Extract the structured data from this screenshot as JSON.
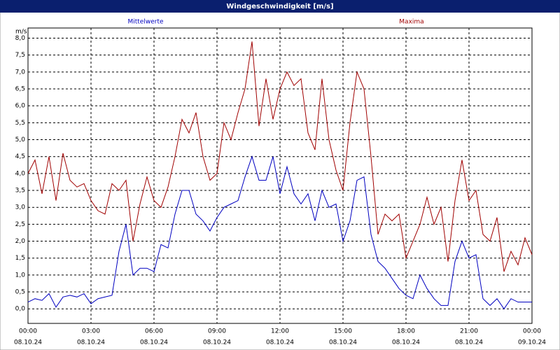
{
  "window_title": "Windgeschwindigkeit [m/s]",
  "chart_data": {
    "type": "line",
    "y_label": "m/s",
    "x": [
      0,
      20,
      40,
      60,
      80,
      100,
      120,
      140,
      160,
      180,
      200,
      220,
      240,
      260,
      280,
      300,
      320,
      340,
      360,
      380,
      400,
      420,
      440,
      460,
      480,
      500,
      520,
      540,
      560,
      580,
      600,
      620,
      640,
      660,
      680,
      700,
      720,
      740,
      760,
      780,
      800,
      820,
      840,
      860,
      880,
      900,
      920,
      940,
      960,
      980,
      1000,
      1020,
      1040,
      1060,
      1080,
      1100,
      1120,
      1140,
      1160,
      1180,
      1200,
      1220,
      1240,
      1260,
      1280,
      1300,
      1320,
      1340,
      1360,
      1380,
      1400,
      1420,
      1440
    ],
    "series": [
      {
        "name": "Mittelwerte",
        "color": "#0000c0",
        "values": [
          0.2,
          0.3,
          0.25,
          0.45,
          0.05,
          0.35,
          0.4,
          0.35,
          0.45,
          0.15,
          0.3,
          0.35,
          0.4,
          1.7,
          2.5,
          1.0,
          1.2,
          1.2,
          1.1,
          1.9,
          1.8,
          2.8,
          3.5,
          3.5,
          2.8,
          2.6,
          2.3,
          2.7,
          3.0,
          3.1,
          3.2,
          3.9,
          4.5,
          3.8,
          3.8,
          4.5,
          3.4,
          4.2,
          3.4,
          3.1,
          3.4,
          2.6,
          3.5,
          3.0,
          3.1,
          2.0,
          2.6,
          3.8,
          3.9,
          2.2,
          1.4,
          1.2,
          0.9,
          0.6,
          0.4,
          0.3,
          1.0,
          0.6,
          0.3,
          0.1,
          0.1,
          1.4,
          2.0,
          1.5,
          1.6,
          0.3,
          0.1,
          0.3,
          0.0,
          0.3,
          0.2,
          0.2,
          0.2
        ]
      },
      {
        "name": "Maxima",
        "color": "#a00000",
        "values": [
          4.0,
          4.4,
          3.4,
          4.5,
          3.2,
          4.6,
          3.8,
          3.6,
          3.7,
          3.2,
          2.9,
          2.8,
          3.7,
          3.5,
          3.8,
          2.0,
          3.1,
          3.9,
          3.2,
          3.0,
          3.6,
          4.5,
          5.6,
          5.2,
          5.8,
          4.5,
          3.8,
          4.0,
          5.5,
          5.0,
          5.8,
          6.5,
          7.9,
          5.4,
          6.8,
          5.6,
          6.5,
          7.0,
          6.6,
          6.8,
          5.2,
          4.7,
          6.8,
          5.0,
          4.1,
          3.5,
          5.5,
          7.0,
          6.5,
          4.5,
          2.2,
          2.8,
          2.6,
          2.8,
          1.5,
          2.0,
          2.5,
          3.3,
          2.5,
          3.0,
          1.4,
          3.2,
          4.4,
          3.2,
          3.5,
          2.2,
          2.0,
          2.7,
          1.1,
          1.7,
          1.3,
          2.1,
          1.6
        ]
      }
    ],
    "xlim": [
      0,
      1440
    ],
    "xticks": [
      {
        "value": 0,
        "label": "00:00"
      },
      {
        "value": 180,
        "label": "03:00"
      },
      {
        "value": 360,
        "label": "06:00"
      },
      {
        "value": 540,
        "label": "09:00"
      },
      {
        "value": 720,
        "label": "12:00"
      },
      {
        "value": 900,
        "label": "15:00"
      },
      {
        "value": 1080,
        "label": "18:00"
      },
      {
        "value": 1260,
        "label": "21:00"
      },
      {
        "value": 1440,
        "label": "00:00"
      }
    ],
    "xtick_dates": [
      "08.10.24",
      "08.10.24",
      "08.10.24",
      "08.10.24",
      "08.10.24",
      "08.10.24",
      "08.10.24",
      "08.10.24",
      "09.10.24"
    ],
    "ylim": [
      -0.43,
      8.3
    ],
    "yticks": [
      {
        "value": 0,
        "label": "0,0"
      },
      {
        "value": 0.5,
        "label": "0,5"
      },
      {
        "value": 1,
        "label": "1,0"
      },
      {
        "value": 1.5,
        "label": "1,5"
      },
      {
        "value": 2,
        "label": "2,0"
      },
      {
        "value": 2.5,
        "label": "2,5"
      },
      {
        "value": 3,
        "label": "3,0"
      },
      {
        "value": 3.5,
        "label": "3,5"
      },
      {
        "value": 4,
        "label": "4,0"
      },
      {
        "value": 4.5,
        "label": "4,5"
      },
      {
        "value": 5,
        "label": "5,0"
      },
      {
        "value": 5.5,
        "label": "5,5"
      },
      {
        "value": 6,
        "label": "6,0"
      },
      {
        "value": 6.5,
        "label": "6,5"
      },
      {
        "value": 7,
        "label": "7,0"
      },
      {
        "value": 7.5,
        "label": "7,5"
      },
      {
        "value": 8,
        "label": "8,0"
      }
    ],
    "grid": true
  }
}
